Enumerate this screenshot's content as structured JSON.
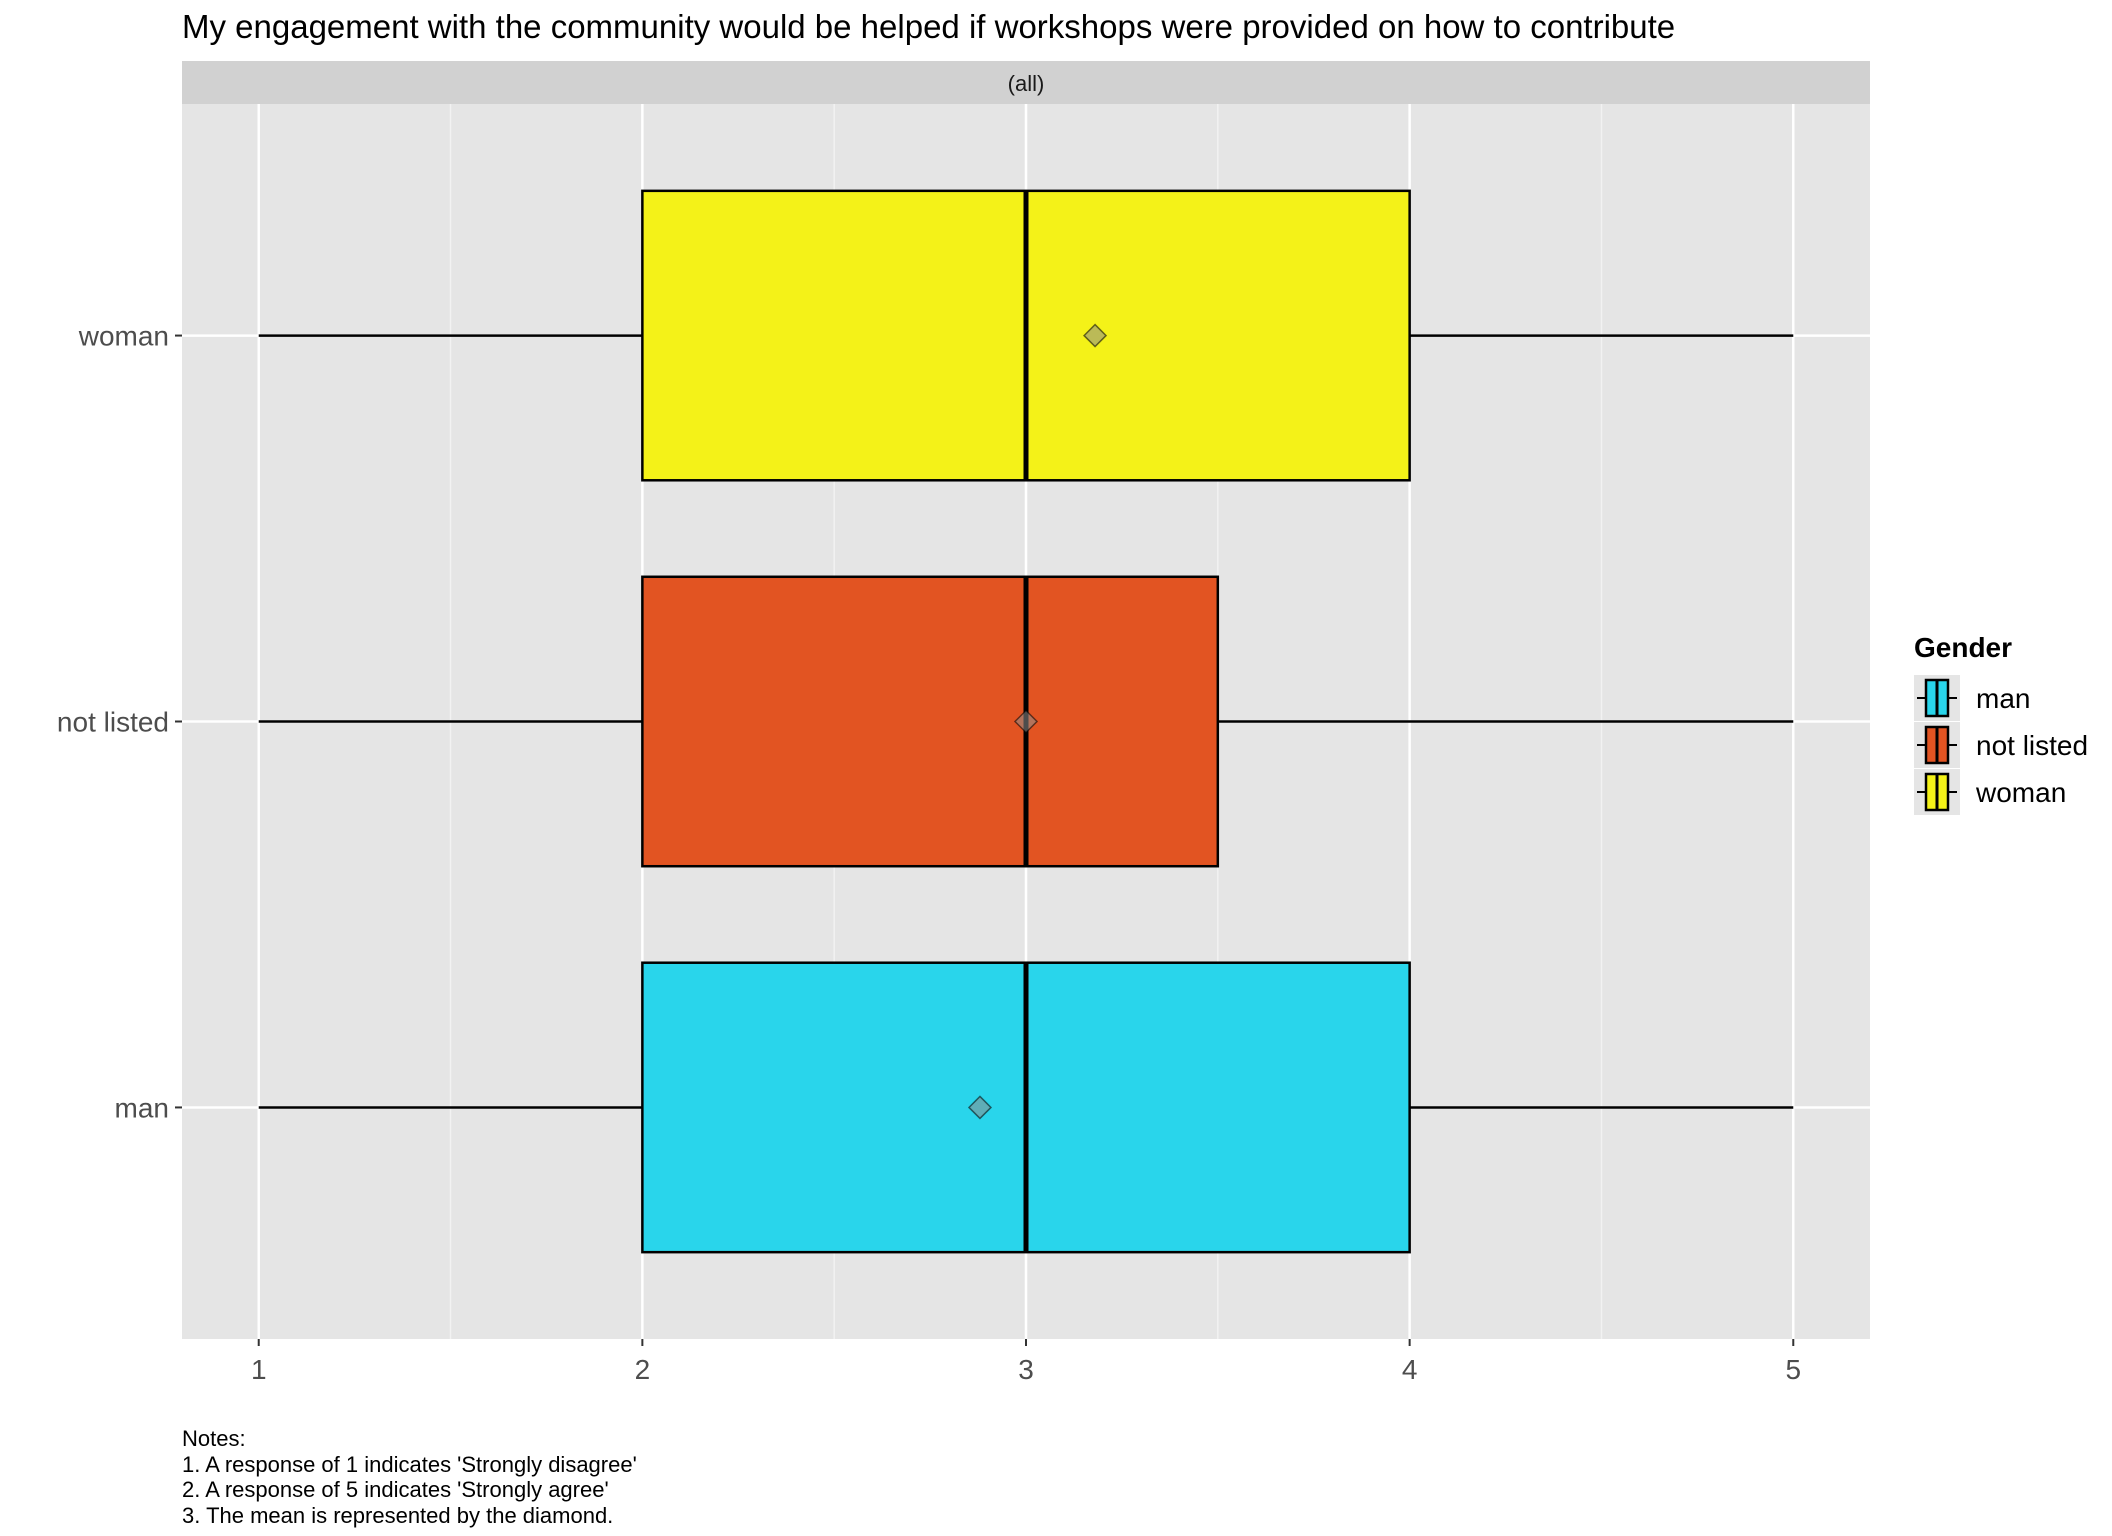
{
  "chart_data": {
    "type": "boxplot",
    "orientation": "horizontal",
    "title": "My engagement with the community would be helped if workshops were provided on how to contribute",
    "facet_label": "(all)",
    "xlabel": "",
    "ylabel": "",
    "xlim": [
      0.8,
      5.2
    ],
    "x_ticks": [
      1,
      2,
      3,
      4,
      5
    ],
    "x_minor_ticks": [
      1.5,
      2.5,
      3.5,
      4.5
    ],
    "categories": [
      "man",
      "not listed",
      "woman"
    ],
    "series": [
      {
        "name": "man",
        "color": "#29D5EB",
        "min": 1,
        "q1": 2,
        "median": 3,
        "q3": 4,
        "max": 5,
        "mean": 2.88
      },
      {
        "name": "not listed",
        "color": "#E25422",
        "min": 1,
        "q1": 2,
        "median": 3,
        "q3": 3.5,
        "max": 5,
        "mean": 3.0
      },
      {
        "name": "woman",
        "color": "#F4F218",
        "min": 1,
        "q1": 2,
        "median": 3,
        "q3": 4,
        "max": 5,
        "mean": 3.18
      }
    ],
    "legend": {
      "title": "Gender",
      "position": "right",
      "items": [
        "man",
        "not listed",
        "woman"
      ]
    },
    "grid": true,
    "panel_background": "#E5E5E5",
    "strip_background": "#D1D1D1"
  },
  "notes": [
    "Notes:",
    "1. A response of 1 indicates 'Strongly disagree'",
    "2. A response of 5 indicates 'Strongly agree'",
    "3. The mean is represented by the diamond."
  ]
}
